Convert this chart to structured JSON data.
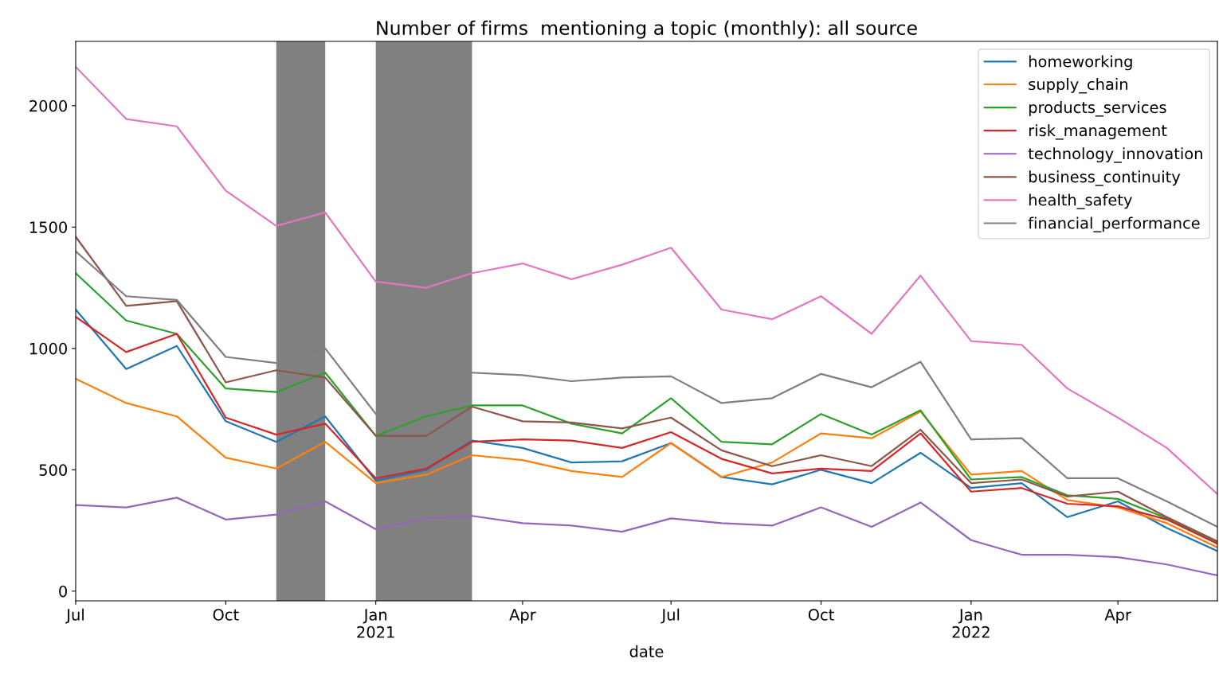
{
  "chart_data": {
    "type": "line",
    "title": "Number of firms  mentioning a topic (monthly): all source",
    "xlabel": "date",
    "x": [
      "2020-07",
      "2020-08",
      "2020-09",
      "2020-10",
      "2020-11",
      "2020-12",
      "2021-01",
      "2021-02",
      "2021-03",
      "2021-04",
      "2021-05",
      "2021-06",
      "2021-07",
      "2021-08",
      "2021-09",
      "2021-10",
      "2021-11",
      "2021-12",
      "2022-01",
      "2022-02",
      "2022-03",
      "2022-04",
      "2022-05",
      "2022-06"
    ],
    "series": [
      {
        "name": "homeworking",
        "color": "#1f77b4",
        "values": [
          1160,
          915,
          1010,
          700,
          615,
          720,
          455,
          500,
          620,
          590,
          530,
          535,
          610,
          470,
          440,
          500,
          445,
          570,
          425,
          445,
          305,
          370,
          260,
          165
        ]
      },
      {
        "name": "supply_chain",
        "color": "#ff7f0e",
        "values": [
          875,
          775,
          720,
          550,
          505,
          615,
          445,
          480,
          560,
          540,
          495,
          470,
          610,
          470,
          530,
          650,
          630,
          740,
          480,
          495,
          375,
          345,
          280,
          180
        ]
      },
      {
        "name": "products_services",
        "color": "#2ca02c",
        "values": [
          1310,
          1115,
          1060,
          835,
          820,
          900,
          640,
          720,
          765,
          765,
          690,
          650,
          795,
          615,
          605,
          730,
          645,
          745,
          460,
          470,
          395,
          380,
          300,
          200
        ]
      },
      {
        "name": "risk_management",
        "color": "#d62728",
        "values": [
          1130,
          985,
          1060,
          715,
          645,
          690,
          465,
          505,
          615,
          625,
          620,
          590,
          655,
          545,
          485,
          505,
          495,
          650,
          410,
          425,
          360,
          350,
          295,
          195
        ]
      },
      {
        "name": "technology_innovation",
        "color": "#9467bd",
        "values": [
          355,
          345,
          385,
          295,
          315,
          370,
          255,
          300,
          310,
          280,
          270,
          245,
          300,
          280,
          270,
          345,
          265,
          365,
          210,
          150,
          150,
          140,
          110,
          65
        ]
      },
      {
        "name": "business_continuity",
        "color": "#8c564b",
        "values": [
          1460,
          1175,
          1195,
          860,
          910,
          880,
          640,
          640,
          760,
          700,
          695,
          670,
          715,
          580,
          515,
          560,
          515,
          665,
          445,
          460,
          390,
          410,
          305,
          205
        ]
      },
      {
        "name": "health_safety",
        "color": "#e377c2",
        "values": [
          2160,
          1945,
          1915,
          1650,
          1505,
          1560,
          1275,
          1250,
          1310,
          1350,
          1285,
          1345,
          1415,
          1160,
          1120,
          1215,
          1060,
          1300,
          1030,
          1015,
          835,
          715,
          590,
          400
        ]
      },
      {
        "name": "financial_performance",
        "color": "#7f7f7f",
        "values": [
          1400,
          1215,
          1200,
          965,
          940,
          1000,
          730,
          null,
          900,
          890,
          865,
          880,
          885,
          775,
          795,
          895,
          840,
          945,
          625,
          630,
          465,
          465,
          370,
          265
        ]
      }
    ],
    "xlim": [
      "2020-07",
      "2022-06"
    ],
    "xticks": [
      {
        "value": "2020-07",
        "label": "Jul"
      },
      {
        "value": "2020-10",
        "label": "Oct"
      },
      {
        "value": "2021-01",
        "label": "Jan\n2021"
      },
      {
        "value": "2021-04",
        "label": "Apr"
      },
      {
        "value": "2021-07",
        "label": "Jul"
      },
      {
        "value": "2021-10",
        "label": "Oct"
      },
      {
        "value": "2022-01",
        "label": "Jan\n2022"
      },
      {
        "value": "2022-04",
        "label": "Apr"
      }
    ],
    "ylim": [
      -40,
      2265
    ],
    "yticks": [
      0,
      500,
      1000,
      1500,
      2000
    ],
    "bands": [
      {
        "axis": "x",
        "from": "2020-11",
        "to": "2020-12",
        "color": "#808080"
      },
      {
        "axis": "x",
        "from": "2021-01",
        "to": "2021-03",
        "color": "#808080"
      }
    ],
    "legend": "top right",
    "grid": false,
    "line_style": "solid",
    "marker": "none"
  }
}
